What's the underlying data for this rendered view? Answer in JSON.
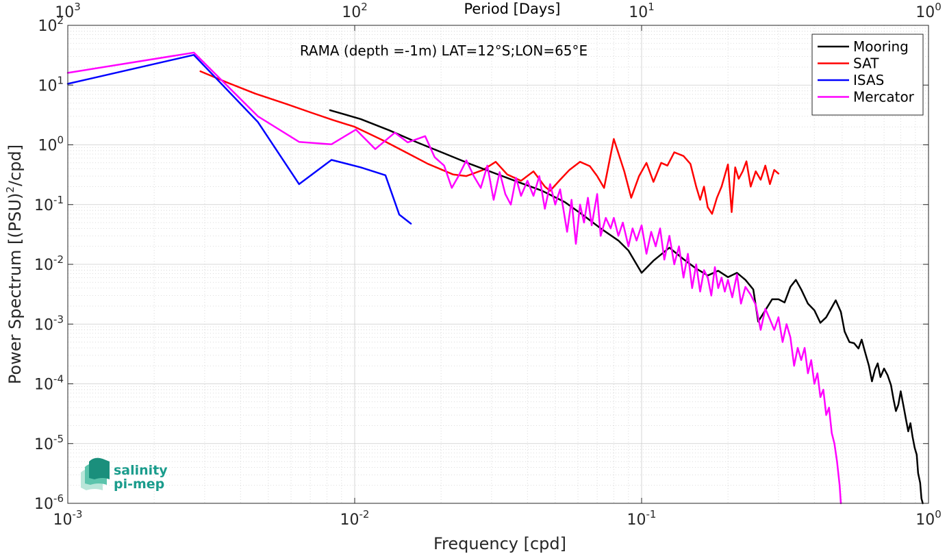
{
  "chart_data": {
    "type": "line",
    "title": "RAMA (depth =-1m) LAT=12°S;LON=65°E",
    "xlabel": "Frequency [cpd]",
    "ylabel_parts": [
      "Power Spectrum [(PSU)",
      "2",
      "/cpd]"
    ],
    "top_xlabel": "Period [Days]",
    "x_scale": "log",
    "y_scale": "log",
    "xlim": [
      0.001,
      1
    ],
    "ylim": [
      1e-06,
      100
    ],
    "grid": true,
    "legend_position": "top-right",
    "x_ticks": [
      {
        "value": 0.001,
        "base": "10",
        "exp": "-3"
      },
      {
        "value": 0.01,
        "base": "10",
        "exp": "-2"
      },
      {
        "value": 0.1,
        "base": "10",
        "exp": "-1"
      },
      {
        "value": 1,
        "base": "10",
        "exp": "0"
      }
    ],
    "top_ticks": [
      {
        "value": 0.001,
        "base": "10",
        "exp": "3"
      },
      {
        "value": 0.01,
        "base": "10",
        "exp": "2"
      },
      {
        "value": 0.1,
        "base": "10",
        "exp": "1"
      },
      {
        "value": 1,
        "base": "10",
        "exp": "0"
      }
    ],
    "y_ticks": [
      {
        "value": 100,
        "base": "10",
        "exp": "2"
      },
      {
        "value": 10,
        "base": "10",
        "exp": "1"
      },
      {
        "value": 1,
        "base": "10",
        "exp": "0"
      },
      {
        "value": 0.1,
        "base": "10",
        "exp": "-1"
      },
      {
        "value": 0.01,
        "base": "10",
        "exp": "-2"
      },
      {
        "value": 0.001,
        "base": "10",
        "exp": "-3"
      },
      {
        "value": 0.0001,
        "base": "10",
        "exp": "-4"
      },
      {
        "value": 1e-05,
        "base": "10",
        "exp": "-5"
      },
      {
        "value": 1e-06,
        "base": "10",
        "exp": "-6"
      }
    ],
    "series": [
      {
        "name": "Mooring",
        "color": "#000000",
        "points": [
          [
            0.0082,
            3.8
          ],
          [
            0.0105,
            2.7
          ],
          [
            0.0132,
            1.75
          ],
          [
            0.0165,
            1.1
          ],
          [
            0.0205,
            0.72
          ],
          [
            0.0255,
            0.47
          ],
          [
            0.031,
            0.33
          ],
          [
            0.037,
            0.24
          ],
          [
            0.045,
            0.17
          ],
          [
            0.054,
            0.11
          ],
          [
            0.063,
            0.065
          ],
          [
            0.072,
            0.04
          ],
          [
            0.083,
            0.025
          ],
          [
            0.09,
            0.017
          ],
          [
            0.1,
            0.0072
          ],
          [
            0.11,
            0.0115
          ],
          [
            0.125,
            0.019
          ],
          [
            0.14,
            0.0122
          ],
          [
            0.155,
            0.0085
          ],
          [
            0.17,
            0.0065
          ],
          [
            0.185,
            0.0078
          ],
          [
            0.2,
            0.0061
          ],
          [
            0.215,
            0.0072
          ],
          [
            0.23,
            0.0055
          ],
          [
            0.245,
            0.0038
          ],
          [
            0.255,
            0.0011
          ],
          [
            0.27,
            0.0017
          ],
          [
            0.285,
            0.0026
          ],
          [
            0.3,
            0.0026
          ],
          [
            0.315,
            0.0023
          ],
          [
            0.33,
            0.0042
          ],
          [
            0.345,
            0.0055
          ],
          [
            0.36,
            0.0038
          ],
          [
            0.38,
            0.0022
          ],
          [
            0.4,
            0.0017
          ],
          [
            0.42,
            0.00105
          ],
          [
            0.44,
            0.0013
          ],
          [
            0.46,
            0.0019
          ],
          [
            0.475,
            0.0025
          ],
          [
            0.495,
            0.0016
          ],
          [
            0.51,
            0.00075
          ],
          [
            0.53,
            0.0005
          ],
          [
            0.55,
            0.00048
          ],
          [
            0.57,
            0.00039
          ],
          [
            0.585,
            0.00055
          ],
          [
            0.6,
            0.00035
          ],
          [
            0.62,
            0.0002
          ],
          [
            0.635,
            0.00011
          ],
          [
            0.65,
            0.00017
          ],
          [
            0.665,
            0.00022
          ],
          [
            0.68,
            0.00013
          ],
          [
            0.7,
            0.00018
          ],
          [
            0.72,
            0.00014
          ],
          [
            0.74,
            9.5e-05
          ],
          [
            0.755,
            5.5e-05
          ],
          [
            0.77,
            3.5e-05
          ],
          [
            0.785,
            4.5e-05
          ],
          [
            0.8,
            7.5e-05
          ],
          [
            0.82,
            4e-05
          ],
          [
            0.835,
            2.5e-05
          ],
          [
            0.85,
            1.6e-05
          ],
          [
            0.865,
            2.2e-05
          ],
          [
            0.88,
            1.3e-05
          ],
          [
            0.895,
            8.5e-06
          ],
          [
            0.91,
            6.5e-06
          ],
          [
            0.92,
            3.2e-06
          ],
          [
            0.935,
            2.2e-06
          ],
          [
            0.945,
            1.2e-06
          ],
          [
            0.955,
            1e-06
          ]
        ]
      },
      {
        "name": "SAT",
        "color": "#ff0000",
        "points": [
          [
            0.0029,
            17.0
          ],
          [
            0.0036,
            11.0
          ],
          [
            0.0045,
            7.2
          ],
          [
            0.0058,
            4.8
          ],
          [
            0.007,
            3.5
          ],
          [
            0.0084,
            2.6
          ],
          [
            0.01,
            2.0
          ],
          [
            0.0125,
            1.2
          ],
          [
            0.0155,
            0.7
          ],
          [
            0.018,
            0.48
          ],
          [
            0.022,
            0.32
          ],
          [
            0.0245,
            0.3
          ],
          [
            0.028,
            0.38
          ],
          [
            0.031,
            0.52
          ],
          [
            0.034,
            0.32
          ],
          [
            0.038,
            0.25
          ],
          [
            0.042,
            0.36
          ],
          [
            0.046,
            0.2
          ],
          [
            0.048,
            0.17
          ],
          [
            0.052,
            0.26
          ],
          [
            0.056,
            0.38
          ],
          [
            0.061,
            0.52
          ],
          [
            0.066,
            0.44
          ],
          [
            0.07,
            0.3
          ],
          [
            0.074,
            0.19
          ],
          [
            0.08,
            1.25
          ],
          [
            0.087,
            0.36
          ],
          [
            0.092,
            0.13
          ],
          [
            0.098,
            0.3
          ],
          [
            0.104,
            0.5
          ],
          [
            0.11,
            0.24
          ],
          [
            0.117,
            0.5
          ],
          [
            0.123,
            0.45
          ],
          [
            0.13,
            0.75
          ],
          [
            0.14,
            0.65
          ],
          [
            0.148,
            0.48
          ],
          [
            0.155,
            0.2
          ],
          [
            0.16,
            0.12
          ],
          [
            0.165,
            0.2
          ],
          [
            0.17,
            0.09
          ],
          [
            0.176,
            0.07
          ],
          [
            0.183,
            0.13
          ],
          [
            0.19,
            0.2
          ],
          [
            0.2,
            0.47
          ],
          [
            0.206,
            0.075
          ],
          [
            0.212,
            0.42
          ],
          [
            0.218,
            0.27
          ],
          [
            0.225,
            0.36
          ],
          [
            0.232,
            0.53
          ],
          [
            0.24,
            0.2
          ],
          [
            0.25,
            0.36
          ],
          [
            0.26,
            0.26
          ],
          [
            0.27,
            0.45
          ],
          [
            0.28,
            0.22
          ],
          [
            0.29,
            0.38
          ],
          [
            0.3,
            0.33
          ]
        ]
      },
      {
        "name": "ISAS",
        "color": "#0000ff",
        "points": [
          [
            0.001,
            10.5
          ],
          [
            0.00275,
            32
          ],
          [
            0.0046,
            2.4
          ],
          [
            0.0064,
            0.22
          ],
          [
            0.0083,
            0.56
          ],
          [
            0.0105,
            0.42
          ],
          [
            0.0128,
            0.31
          ],
          [
            0.0143,
            0.068
          ],
          [
            0.0157,
            0.048
          ]
        ]
      },
      {
        "name": "Mercator",
        "color": "#ff00ff",
        "points": [
          [
            0.001,
            16.0
          ],
          [
            0.00275,
            35
          ],
          [
            0.0046,
            3.0
          ],
          [
            0.0064,
            1.12
          ],
          [
            0.0083,
            1.02
          ],
          [
            0.0101,
            1.8
          ],
          [
            0.0118,
            0.85
          ],
          [
            0.0138,
            1.6
          ],
          [
            0.0153,
            1.1
          ],
          [
            0.0176,
            1.4
          ],
          [
            0.019,
            0.62
          ],
          [
            0.0205,
            0.45
          ],
          [
            0.0218,
            0.19
          ],
          [
            0.023,
            0.3
          ],
          [
            0.0245,
            0.55
          ],
          [
            0.026,
            0.3
          ],
          [
            0.0275,
            0.19
          ],
          [
            0.029,
            0.45
          ],
          [
            0.0305,
            0.12
          ],
          [
            0.032,
            0.35
          ],
          [
            0.0335,
            0.15
          ],
          [
            0.035,
            0.1
          ],
          [
            0.0365,
            0.28
          ],
          [
            0.038,
            0.14
          ],
          [
            0.04,
            0.25
          ],
          [
            0.042,
            0.14
          ],
          [
            0.044,
            0.3
          ],
          [
            0.046,
            0.085
          ],
          [
            0.048,
            0.22
          ],
          [
            0.05,
            0.1
          ],
          [
            0.052,
            0.18
          ],
          [
            0.055,
            0.035
          ],
          [
            0.057,
            0.12
          ],
          [
            0.059,
            0.022
          ],
          [
            0.061,
            0.1
          ],
          [
            0.063,
            0.05
          ],
          [
            0.065,
            0.13
          ],
          [
            0.067,
            0.045
          ],
          [
            0.07,
            0.15
          ],
          [
            0.072,
            0.03
          ],
          [
            0.075,
            0.06
          ],
          [
            0.078,
            0.04
          ],
          [
            0.08,
            0.06
          ],
          [
            0.083,
            0.03
          ],
          [
            0.086,
            0.05
          ],
          [
            0.09,
            0.02
          ],
          [
            0.093,
            0.04
          ],
          [
            0.096,
            0.025
          ],
          [
            0.1,
            0.045
          ],
          [
            0.104,
            0.015
          ],
          [
            0.108,
            0.035
          ],
          [
            0.112,
            0.02
          ],
          [
            0.116,
            0.04
          ],
          [
            0.12,
            0.012
          ],
          [
            0.125,
            0.03
          ],
          [
            0.13,
            0.01
          ],
          [
            0.135,
            0.02
          ],
          [
            0.14,
            0.006
          ],
          [
            0.145,
            0.015
          ],
          [
            0.15,
            0.004
          ],
          [
            0.155,
            0.01
          ],
          [
            0.16,
            0.0035
          ],
          [
            0.165,
            0.008
          ],
          [
            0.17,
            0.006
          ],
          [
            0.175,
            0.003
          ],
          [
            0.18,
            0.009
          ],
          [
            0.185,
            0.004
          ],
          [
            0.19,
            0.006
          ],
          [
            0.195,
            0.0035
          ],
          [
            0.2,
            0.0055
          ],
          [
            0.207,
            0.0028
          ],
          [
            0.215,
            0.0068
          ],
          [
            0.222,
            0.0022
          ],
          [
            0.23,
            0.0042
          ],
          [
            0.24,
            0.0031
          ],
          [
            0.25,
            0.0021
          ],
          [
            0.26,
            0.0008
          ],
          [
            0.27,
            0.0018
          ],
          [
            0.28,
            0.0012
          ],
          [
            0.29,
            0.0008
          ],
          [
            0.3,
            0.0013
          ],
          [
            0.31,
            0.0005
          ],
          [
            0.32,
            0.001
          ],
          [
            0.33,
            0.0006
          ],
          [
            0.34,
            0.0002
          ],
          [
            0.35,
            0.0004
          ],
          [
            0.36,
            0.00025
          ],
          [
            0.37,
            0.0004
          ],
          [
            0.38,
            0.00015
          ],
          [
            0.39,
            0.00025
          ],
          [
            0.4,
            0.0001
          ],
          [
            0.41,
            0.00015
          ],
          [
            0.42,
            6e-05
          ],
          [
            0.43,
            8e-05
          ],
          [
            0.44,
            3e-05
          ],
          [
            0.45,
            4e-05
          ],
          [
            0.46,
            1.5e-05
          ],
          [
            0.47,
            1e-05
          ],
          [
            0.48,
            5e-06
          ],
          [
            0.49,
            2e-06
          ],
          [
            0.495,
            1e-06
          ]
        ]
      }
    ]
  },
  "logo": {
    "line1": "salinity",
    "line2": "pi-mep"
  }
}
